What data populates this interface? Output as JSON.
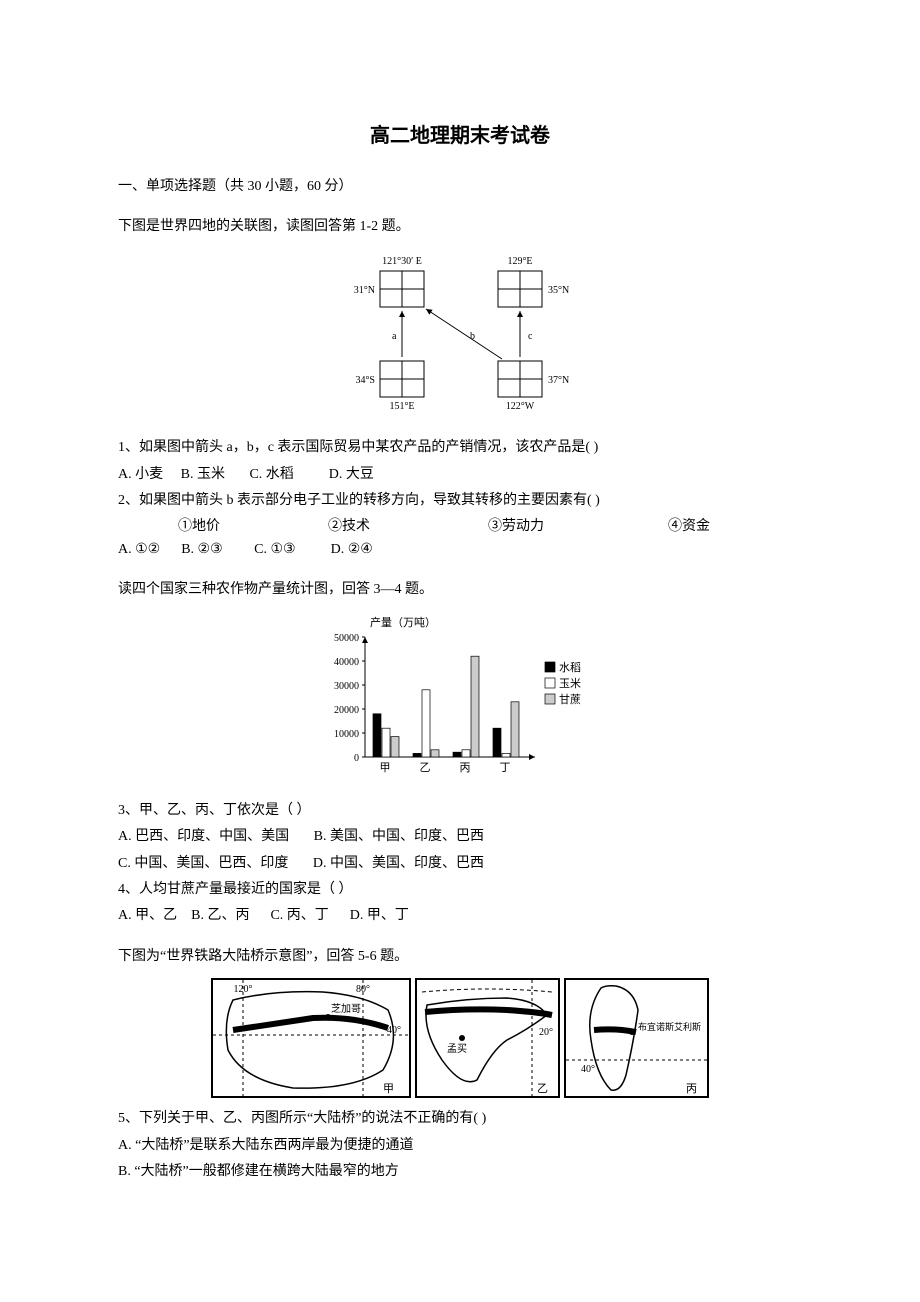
{
  "title": "高二地理期末考试卷",
  "sectionHeader": "一、单项选择题（共 30 小题，60 分）",
  "block1": {
    "intro": "下图是世界四地的关联图，读图回答第 1-2 题。",
    "diagram": {
      "labels": {
        "topLeftLon": "121°30′ E",
        "topRightLon": "129°E",
        "topLeftLat": "31°N",
        "topRightLat": "35°N",
        "botLeftLat": "34°S",
        "botRightLat": "37°N",
        "botLeftLon": "151°E",
        "botRightLon": "122°W",
        "arrowA": "a",
        "arrowB": "b",
        "arrowC": "c"
      },
      "colors": {
        "stroke": "#000000",
        "bg": "#ffffff"
      }
    },
    "q1": {
      "text": "1、如果图中箭头 a，b，c 表示国际贸易中某农产品的产销情况，该农产品是(        )",
      "opts": "A. 小麦     B. 玉米       C. 水稻          D. 大豆"
    },
    "q2": {
      "text": "2、如果图中箭头 b 表示部分电子工业的转移方向，导致其转移的主要因素有(        )",
      "factors": {
        "f1": "①地价",
        "f2": "②技术",
        "f3": "③劳动力",
        "f4": "④资金"
      },
      "opts": "A. ①②      B. ②③         C. ①③          D. ②④"
    }
  },
  "block2": {
    "intro": "读四个国家三种农作物产量统计图，回答 3—4 题。",
    "chart": {
      "type": "bar",
      "ylabel": "产量（万吨）",
      "yticks": [
        0,
        10000,
        20000,
        30000,
        40000,
        50000
      ],
      "categories": [
        "甲",
        "乙",
        "丙",
        "丁"
      ],
      "series": [
        {
          "name": "水稻",
          "color": "#000000",
          "values": [
            18000,
            1500,
            2000,
            12000
          ]
        },
        {
          "name": "玉米",
          "color": "#ffffff",
          "values": [
            12000,
            28000,
            3000,
            1500
          ]
        },
        {
          "name": "甘蔗",
          "color": "#cccccc",
          "values": [
            8500,
            3000,
            42000,
            23000
          ]
        }
      ],
      "legend": [
        "水稻",
        "玉米",
        "甘蔗"
      ],
      "legend_markers": [
        "#000000",
        "#ffffff",
        "#cccccc"
      ],
      "axis_color": "#000000",
      "bg": "#ffffff"
    },
    "q3": {
      "text": "3、甲、乙、丙、丁依次是（    ）",
      "optsA": "A. 巴西、印度、中国、美国       B. 美国、中国、印度、巴西",
      "optsB": "C. 中国、美国、巴西、印度       D. 中国、美国、印度、巴西"
    },
    "q4": {
      "text": "4、人均甘蔗产量最接近的国家是（    ）",
      "opts": "A. 甲、乙    B. 乙、丙      C. 丙、丁      D. 甲、丁"
    }
  },
  "block3": {
    "intro": "下图为“世界铁路大陆桥示意图”，回答 5-6 题。",
    "maps": {
      "map1": {
        "lonLeft": "120°",
        "lonRight": "80°",
        "lat": "40°",
        "city": "芝加哥",
        "label": "甲"
      },
      "map2": {
        "lon": "20°",
        "city": "孟买",
        "label": "乙"
      },
      "map3": {
        "lat": "40°",
        "city": "布宜诺斯艾利斯",
        "label": "丙"
      }
    },
    "q5": {
      "text": "5、下列关于甲、乙、丙图所示“大陆桥”的说法不正确的有(        )",
      "optA": "A. “大陆桥”是联系大陆东西两岸最为便捷的通道",
      "optB": "B. “大陆桥”一般都修建在横跨大陆最窄的地方"
    }
  }
}
